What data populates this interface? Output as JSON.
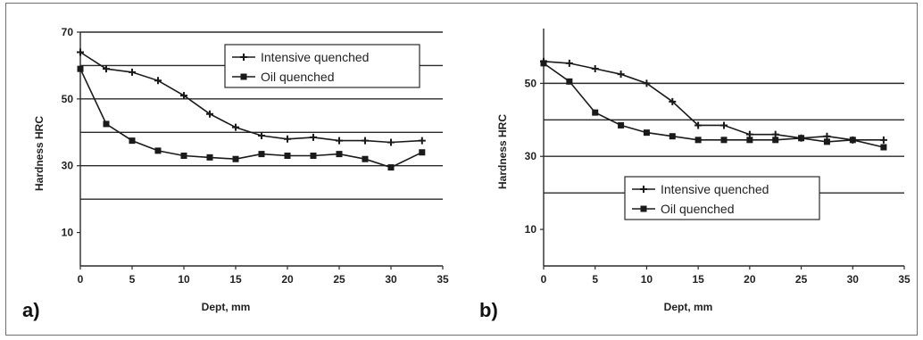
{
  "chart_data": [
    {
      "type": "line",
      "panel_label": "a)",
      "xlabel": "Dept, mm",
      "ylabel": "Hardness HRC",
      "xlim": [
        0,
        35
      ],
      "ylim": [
        0,
        70
      ],
      "xticks": [
        0,
        5,
        10,
        15,
        20,
        25,
        30,
        35
      ],
      "yticks": [
        10,
        30,
        50,
        70
      ],
      "gridlines_y": [
        20,
        30,
        40,
        50,
        60,
        70
      ],
      "grid": "horizontal",
      "legend_position": "top-right",
      "series": [
        {
          "name": "Intensive quenched",
          "marker": "plus",
          "x": [
            0,
            2.5,
            5,
            7.5,
            10,
            12.5,
            15,
            17.5,
            20,
            22.5,
            25,
            27.5,
            30,
            33
          ],
          "y": [
            64,
            59,
            58,
            55.5,
            51,
            45.5,
            41.5,
            39,
            38,
            38.5,
            37.5,
            37.5,
            37,
            37.5
          ]
        },
        {
          "name": "Oil quenched",
          "marker": "square",
          "x": [
            0,
            2.5,
            5,
            7.5,
            10,
            12.5,
            15,
            17.5,
            20,
            22.5,
            25,
            27.5,
            30,
            33
          ],
          "y": [
            59,
            42.5,
            37.5,
            34.5,
            33,
            32.5,
            32,
            33.5,
            33,
            33,
            33.5,
            32,
            29.5,
            34
          ]
        }
      ]
    },
    {
      "type": "line",
      "panel_label": "b)",
      "xlabel": "Dept, mm",
      "ylabel": "Hardness HRC",
      "xlim": [
        0,
        35
      ],
      "ylim": [
        0,
        65
      ],
      "xticks": [
        0,
        5,
        10,
        15,
        20,
        25,
        30,
        35
      ],
      "yticks": [
        10,
        30,
        50
      ],
      "gridlines_y": [
        20,
        30,
        40,
        50
      ],
      "grid": "horizontal",
      "legend_position": "bottom-center",
      "series": [
        {
          "name": "Intensive quenched",
          "marker": "plus",
          "x": [
            0,
            2.5,
            5,
            7.5,
            10,
            12.5,
            15,
            17.5,
            20,
            22.5,
            25,
            27.5,
            30,
            33
          ],
          "y": [
            56,
            55.5,
            54,
            52.5,
            50,
            45,
            38.5,
            38.5,
            36,
            36,
            35,
            35.5,
            34.5,
            34.5
          ]
        },
        {
          "name": "Oil quenched",
          "marker": "square",
          "x": [
            0,
            2.5,
            5,
            7.5,
            10,
            12.5,
            15,
            17.5,
            20,
            22.5,
            25,
            27.5,
            30,
            33
          ],
          "y": [
            55.5,
            50.5,
            42,
            38.5,
            36.5,
            35.5,
            34.5,
            34.5,
            34.5,
            34.5,
            35,
            34,
            34.5,
            32.5
          ]
        }
      ]
    }
  ]
}
